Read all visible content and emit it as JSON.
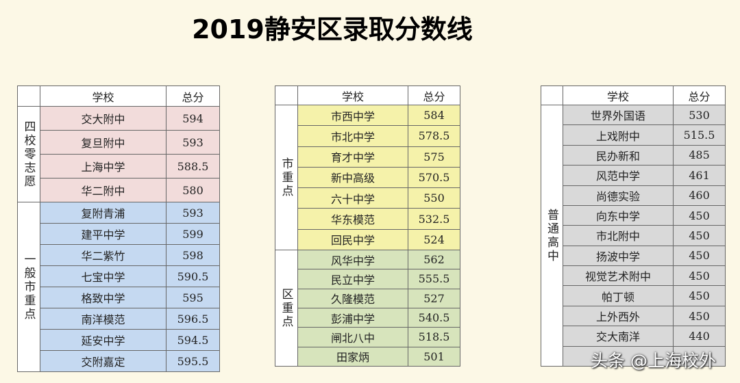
{
  "title": "2019静安区录取分数线",
  "watermark": "头条 @上海校外",
  "tables": [
    {
      "header": [
        "学校",
        "总分"
      ],
      "groups": [
        {
          "label": "四校零志愿",
          "rows": [
            [
              "交大附中",
              594
            ],
            [
              "复旦附中",
              593
            ],
            [
              "上海中学",
              588.5
            ],
            [
              "华二附中",
              580
            ]
          ]
        },
        {
          "label": "一般市重点",
          "rows": [
            [
              "复附青浦",
              593
            ],
            [
              "建平中学",
              599
            ],
            [
              "华二紫竹",
              598
            ],
            [
              "七宝中学",
              590.5
            ],
            [
              "格致中学",
              595
            ],
            [
              "南洋模范",
              596.5
            ],
            [
              "延安中学",
              594.5
            ],
            [
              "交附嘉定",
              595.5
            ]
          ]
        }
      ]
    },
    {
      "header": [
        "学校",
        "总分"
      ],
      "groups": [
        {
          "label": "市重点",
          "rows": [
            [
              "市西中学",
              584
            ],
            [
              "市北中学",
              578.5
            ],
            [
              "育才中学",
              575
            ],
            [
              "新中高级",
              570.5
            ],
            [
              "六十中学",
              550
            ],
            [
              "华东模范",
              532.5
            ],
            [
              "回民中学",
              524
            ]
          ]
        },
        {
          "label": "区重点",
          "rows": [
            [
              "风华中学",
              562
            ],
            [
              "民立中学",
              555.5
            ],
            [
              "久隆模范",
              527
            ],
            [
              "彭浦中学",
              540.5
            ],
            [
              "闸北八中",
              518.5
            ],
            [
              "田家炳",
              501
            ]
          ]
        }
      ]
    },
    {
      "header": [
        "学校",
        "总分"
      ],
      "groups": [
        {
          "label": "普通高中",
          "rows": [
            [
              "世界外国语",
              530
            ],
            [
              "上戏附中",
              515.5
            ],
            [
              "民办新和",
              485
            ],
            [
              "风范中学",
              461
            ],
            [
              "尚德实验",
              460
            ],
            [
              "向东中学",
              450
            ],
            [
              "市北附中",
              450
            ],
            [
              "扬波中学",
              450
            ],
            [
              "视觉艺术附中",
              450
            ],
            [
              "帕丁顿",
              450
            ],
            [
              "上外西外",
              450
            ],
            [
              "交大南洋",
              440
            ]
          ]
        }
      ]
    }
  ]
}
